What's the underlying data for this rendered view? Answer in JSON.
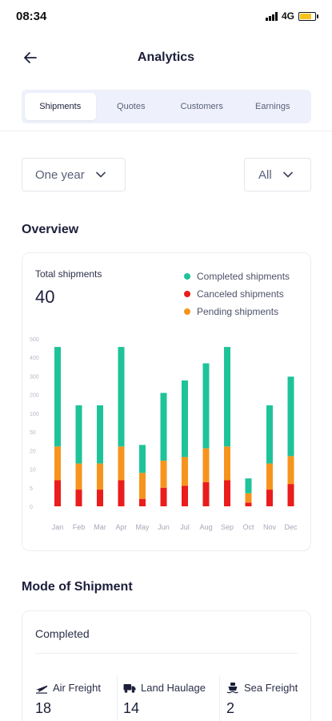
{
  "status_bar": {
    "time": "08:34",
    "network": "4G",
    "battery_level": 0.75
  },
  "header": {
    "title": "Analytics",
    "back_icon": "arrow-left-icon"
  },
  "tabs": [
    {
      "label": "Shipments",
      "active": true
    },
    {
      "label": "Quotes",
      "active": false
    },
    {
      "label": "Customers",
      "active": false
    },
    {
      "label": "Earnings",
      "active": false
    }
  ],
  "filters": {
    "period": "One year",
    "scope": "All"
  },
  "overview": {
    "title": "Overview",
    "total_label": "Total shipments",
    "total_value": "40",
    "legend": [
      {
        "label": "Completed shipments",
        "color": "#1fc39a"
      },
      {
        "label": "Canceled shipments",
        "color": "#ea1c1c"
      },
      {
        "label": "Pending shipments",
        "color": "#f7941d"
      }
    ]
  },
  "chart_data": {
    "type": "bar",
    "stacked": true,
    "y_ticks": [
      "0",
      "5",
      "10",
      "20",
      "50",
      "100",
      "200",
      "300",
      "400",
      "500"
    ],
    "categories": [
      "Jan",
      "Feb",
      "Mar",
      "Apr",
      "May",
      "Jun",
      "Jul",
      "Aug",
      "Sep",
      "Oct",
      "Nov",
      "Dec"
    ],
    "series": [
      {
        "name": "Canceled shipments",
        "color": "#ea1c1c",
        "values": [
          7,
          4.5,
          4.5,
          7,
          2,
          5,
          5.5,
          6.5,
          7,
          1,
          4.5,
          6
        ]
      },
      {
        "name": "Pending shipments",
        "color": "#f7941d",
        "values": [
          19.5,
          8.5,
          8.5,
          19.5,
          7,
          9.5,
          11,
          17,
          19.5,
          2.5,
          8.5,
          11
        ]
      },
      {
        "name": "Completed shipments",
        "color": "#1fc39a",
        "values": [
          430,
          130,
          130,
          430,
          20,
          195,
          260,
          345,
          430,
          4,
          130,
          280
        ]
      }
    ]
  },
  "mode_of_shipment": {
    "title": "Mode of Shipment",
    "status": "Completed",
    "items": [
      {
        "label": "Air Freight",
        "icon": "plane-icon",
        "value": "18"
      },
      {
        "label": "Land Haulage",
        "icon": "truck-icon",
        "value": "14"
      },
      {
        "label": "Sea Freight",
        "icon": "ship-icon",
        "value": "2"
      }
    ]
  }
}
